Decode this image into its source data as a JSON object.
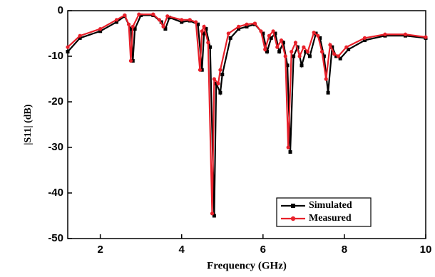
{
  "chart_data": {
    "type": "line",
    "xlabel": "Frequency (GHz)",
    "ylabel": "|S11| (dB)",
    "xlim": [
      1.2,
      10
    ],
    "ylim": [
      -50,
      0
    ],
    "xticks": [
      2,
      4,
      6,
      8,
      10
    ],
    "yticks": [
      0,
      -10,
      -20,
      -30,
      -40,
      -50
    ],
    "legend": "lower right",
    "series": [
      {
        "name": "Simulated",
        "color": "#000000",
        "marker": "square",
        "x": [
          1.2,
          1.5,
          2.0,
          2.4,
          2.6,
          2.75,
          2.8,
          2.85,
          3.0,
          3.3,
          3.5,
          3.6,
          3.7,
          4.0,
          4.2,
          4.4,
          4.5,
          4.55,
          4.6,
          4.7,
          4.8,
          4.85,
          4.95,
          5.0,
          5.2,
          5.4,
          5.6,
          5.8,
          6.0,
          6.1,
          6.2,
          6.3,
          6.4,
          6.5,
          6.6,
          6.67,
          6.75,
          6.85,
          6.95,
          7.05,
          7.15,
          7.3,
          7.4,
          7.5,
          7.6,
          7.7,
          7.8,
          7.9,
          8.1,
          8.5,
          9.0,
          9.5,
          10.0
        ],
        "values": [
          -9,
          -6,
          -4.5,
          -2.5,
          -1.2,
          -4,
          -11,
          -4,
          -1,
          -1,
          -2.5,
          -4,
          -1.5,
          -2.5,
          -2.2,
          -3,
          -13,
          -5,
          -4,
          -8,
          -45,
          -16,
          -18,
          -14,
          -6,
          -4,
          -3.5,
          -3,
          -5,
          -9,
          -6,
          -5,
          -9,
          -7,
          -12,
          -31,
          -10,
          -8,
          -12,
          -9,
          -10,
          -5,
          -6,
          -10,
          -18,
          -8,
          -10,
          -10.5,
          -8.5,
          -6.5,
          -5.5,
          -5.5,
          -6
        ]
      },
      {
        "name": "Measured",
        "color": "#e8202a",
        "marker": "circle",
        "x": [
          1.2,
          1.5,
          2.0,
          2.4,
          2.6,
          2.7,
          2.75,
          2.8,
          2.95,
          3.3,
          3.45,
          3.55,
          3.65,
          4.0,
          4.2,
          4.35,
          4.45,
          4.5,
          4.55,
          4.65,
          4.75,
          4.8,
          4.9,
          4.95,
          5.15,
          5.4,
          5.6,
          5.8,
          5.95,
          6.05,
          6.15,
          6.25,
          6.35,
          6.45,
          6.55,
          6.62,
          6.7,
          6.8,
          6.9,
          7.0,
          7.1,
          7.25,
          7.35,
          7.45,
          7.55,
          7.65,
          7.75,
          7.85,
          8.05,
          8.5,
          9.0,
          9.5,
          10.0
        ],
        "values": [
          -8,
          -5.5,
          -4,
          -2,
          -1,
          -3,
          -11,
          -3.5,
          -0.8,
          -0.8,
          -2,
          -3.5,
          -1.2,
          -2,
          -2,
          -2.5,
          -13,
          -4.5,
          -3.5,
          -7,
          -44.5,
          -15,
          -16,
          -13,
          -5,
          -3.5,
          -3,
          -2.8,
          -4.5,
          -8.5,
          -5.5,
          -4.5,
          -8,
          -6.5,
          -10,
          -30,
          -9,
          -7,
          -10,
          -8,
          -9,
          -4.8,
          -5.5,
          -9,
          -15,
          -7.5,
          -9.5,
          -10,
          -8,
          -6,
          -5.2,
          -5.2,
          -5.8
        ]
      }
    ]
  }
}
